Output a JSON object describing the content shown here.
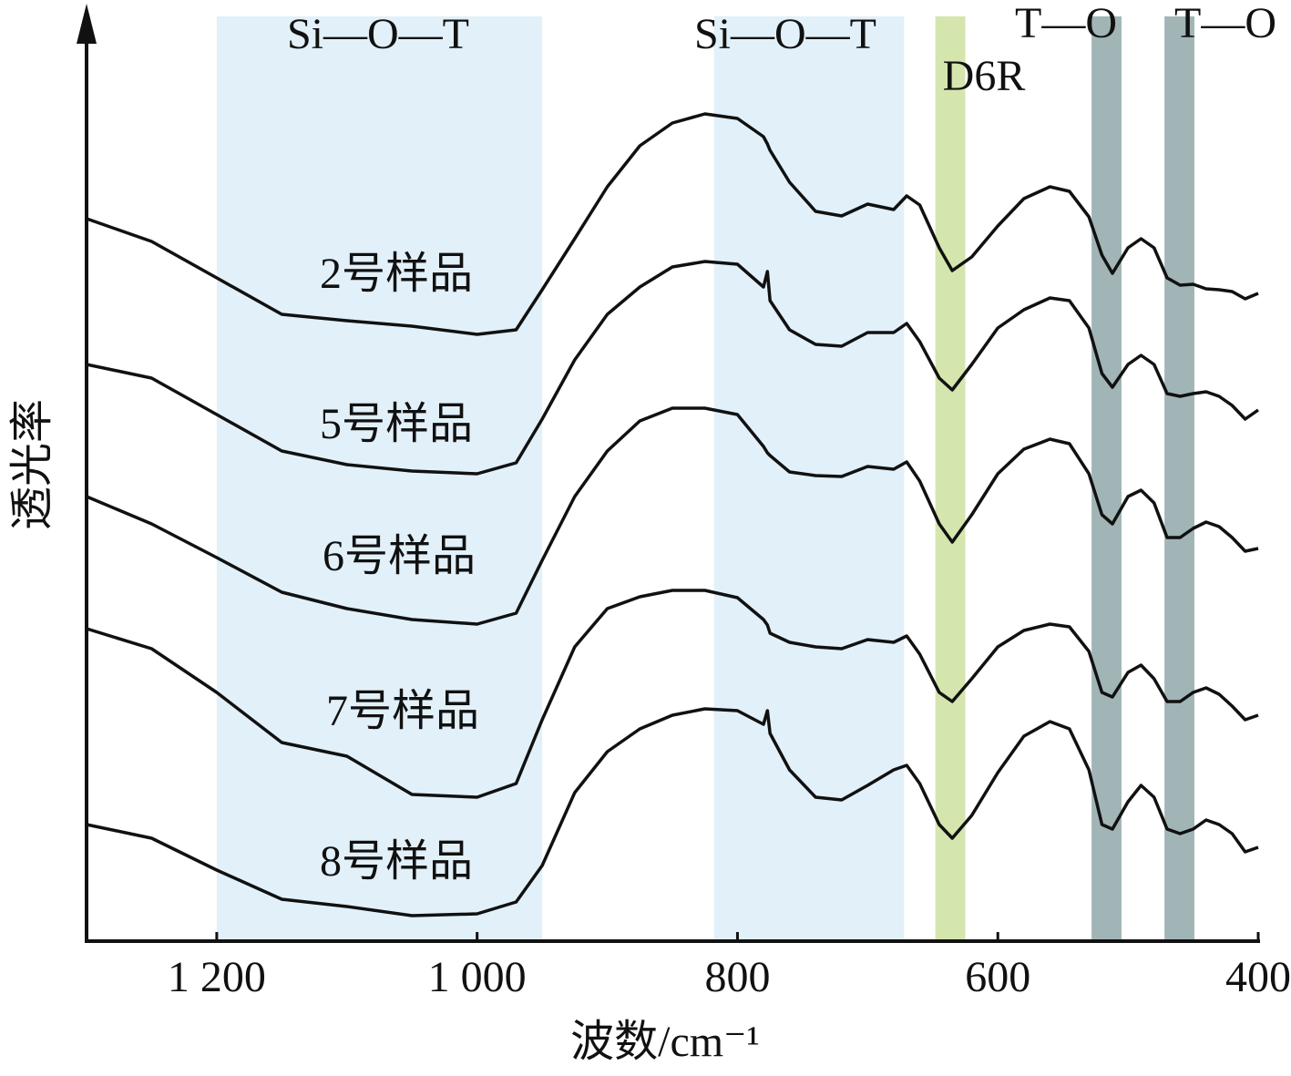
{
  "chart_data": {
    "type": "line",
    "xlabel": "波数/cm⁻¹",
    "ylabel": "透光率",
    "xlim": [
      1300,
      400
    ],
    "ylim": [
      0,
      100
    ],
    "xticks": [
      {
        "value": 1200,
        "label": "1 200"
      },
      {
        "value": 1000,
        "label": "1 000"
      },
      800,
      600,
      400
    ],
    "annotations": [
      {
        "label": "Si—O—T",
        "range": [
          1200,
          950
        ],
        "color": "#e2f0f9"
      },
      {
        "label": "Si—O—T",
        "range": [
          818,
          672
        ],
        "color": "#e2f0f9"
      },
      {
        "label": "D6R",
        "range": [
          648,
          625
        ],
        "color": "#d4e6ad"
      },
      {
        "label": "T—O",
        "range": [
          528,
          505
        ],
        "color": "#a2b5b6"
      },
      {
        "label": "T—O",
        "range": [
          472,
          449
        ],
        "color": "#a2b5b6"
      }
    ],
    "x": [
      1300,
      1250,
      1200,
      1150,
      1100,
      1050,
      1000,
      970,
      950,
      925,
      900,
      875,
      850,
      825,
      800,
      780,
      777,
      775,
      760,
      740,
      720,
      700,
      680,
      670,
      660,
      645,
      635,
      620,
      600,
      580,
      560,
      545,
      530,
      520,
      512,
      500,
      490,
      480,
      470,
      460,
      450,
      440,
      430,
      420,
      410,
      400
    ],
    "series": [
      {
        "name": "2号样品",
        "color": "#111111",
        "values": [
          79.3,
          76.8,
          72.8,
          68.8,
          68.1,
          67.5,
          66.6,
          67.1,
          71.5,
          77.1,
          82.8,
          87.3,
          89.8,
          90.8,
          90.3,
          88.3,
          87.5,
          86.8,
          83.3,
          80.1,
          79.6,
          80.9,
          80.3,
          81.8,
          80.8,
          76.1,
          73.6,
          75.1,
          78.5,
          81.5,
          82.8,
          82.3,
          79.5,
          75.3,
          73.3,
          76.1,
          77.1,
          76.1,
          72.8,
          72.0,
          72.1,
          71.6,
          71.5,
          71.3,
          70.5,
          71.1
        ]
      },
      {
        "name": "5号样品",
        "color": "#111111",
        "values": [
          63.3,
          61.8,
          57.8,
          53.8,
          52.3,
          51.6,
          51.3,
          52.5,
          57.3,
          63.8,
          68.8,
          71.8,
          74,
          74.6,
          74.3,
          71.8,
          73.5,
          70.3,
          67.1,
          65.5,
          65.3,
          66.8,
          66.8,
          67.8,
          65.8,
          61.8,
          60.5,
          63.3,
          67.3,
          69.3,
          70.6,
          70.3,
          67.3,
          62.3,
          60.8,
          63.3,
          64.3,
          63.3,
          60.1,
          59.8,
          60.1,
          60.3,
          59.8,
          58.8,
          57.3,
          58.3
        ]
      },
      {
        "name": "6号样品",
        "color": "#111111",
        "values": [
          48.8,
          45.8,
          42.1,
          38.3,
          36.5,
          35.3,
          34.8,
          36,
          41.8,
          48.8,
          53.8,
          57.1,
          58.5,
          58.5,
          57.8,
          54.3,
          53.6,
          53.3,
          51.5,
          51.1,
          51,
          52.1,
          51.8,
          52.6,
          50.5,
          45.8,
          43.8,
          46.8,
          51.3,
          54,
          55.1,
          54.6,
          51.3,
          46.8,
          45.8,
          48.8,
          49.5,
          48.1,
          44.3,
          44.3,
          45.3,
          46,
          45.5,
          44.3,
          42.8,
          43.1
        ]
      },
      {
        "name": "7号样品",
        "color": "#111111",
        "values": [
          34.3,
          32.1,
          27.3,
          21.8,
          20.3,
          16.1,
          15.8,
          17.3,
          24.3,
          32.3,
          36.5,
          37.8,
          38.5,
          38.5,
          37.7,
          35.3,
          34.7,
          33.8,
          32.8,
          32.3,
          32.1,
          33.1,
          32.8,
          33.5,
          31.5,
          27.3,
          26.3,
          28.8,
          32.3,
          34.1,
          34.8,
          34.5,
          31.8,
          27.3,
          26.8,
          29.5,
          30.3,
          28.8,
          26.3,
          26.3,
          27.3,
          27.8,
          27.1,
          25.8,
          24.3,
          24.8
        ]
      },
      {
        "name": "8号样品",
        "color": "#111111",
        "values": [
          12.8,
          11.3,
          7.8,
          4.6,
          3.8,
          2.8,
          3,
          4.3,
          8.3,
          16.3,
          20.8,
          23.3,
          24.8,
          25.5,
          25.3,
          23.8,
          25.3,
          22.8,
          18.8,
          15.8,
          15.5,
          17.1,
          18.8,
          19.3,
          17.3,
          12.8,
          11.3,
          13.8,
          18.5,
          22.5,
          24.1,
          23.3,
          18.8,
          12.8,
          12.3,
          15.3,
          17.1,
          15.8,
          12.3,
          11.8,
          12.3,
          13.3,
          12.8,
          11.8,
          9.8,
          10.3
        ]
      }
    ]
  }
}
